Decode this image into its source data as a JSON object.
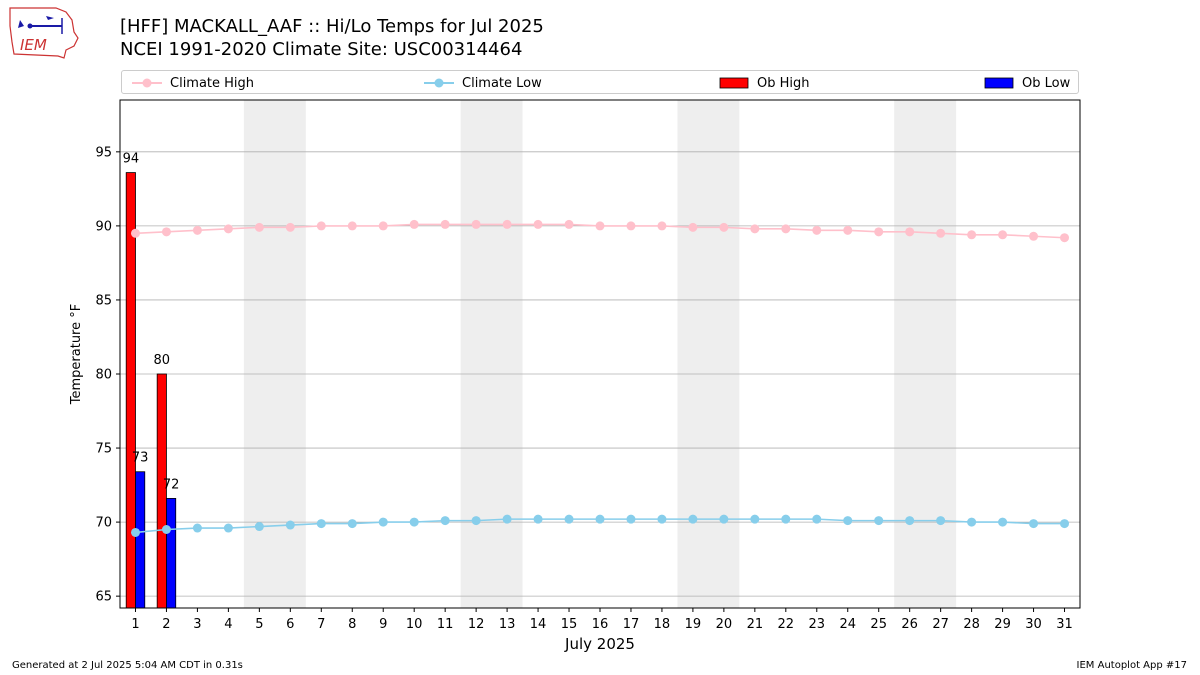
{
  "header": {
    "title_line1": "[HFF] MACKALL_AAF :: Hi/Lo Temps for Jul 2025",
    "title_line2": "NCEI 1991-2020 Climate Site: USC00314464",
    "logo_text": "IEM"
  },
  "legend": {
    "climate_high": "Climate High",
    "climate_low": "Climate Low",
    "ob_high": "Ob High",
    "ob_low": "Ob Low"
  },
  "footer": {
    "generated": "Generated at 2 Jul 2025 5:04 AM CDT in 0.31s",
    "app": "IEM Autoplot App #17"
  },
  "colors": {
    "climate_high": "#FFC0CB",
    "climate_low": "#87CEEB",
    "ob_high": "#FF0000",
    "ob_low": "#0000FF",
    "weekend_shade": "#EEEEEE",
    "grid": "#B0B0B0"
  },
  "chart_data": {
    "type": "bar",
    "xlabel": "July 2025",
    "ylabel": "Temperature °F",
    "xlim": [
      0.5,
      31.5
    ],
    "ylim": [
      64.2,
      98.5
    ],
    "yticks": [
      65,
      70,
      75,
      80,
      85,
      90,
      95
    ],
    "grid": "horizontal",
    "legend_position": "top",
    "days": [
      1,
      2,
      3,
      4,
      5,
      6,
      7,
      8,
      9,
      10,
      11,
      12,
      13,
      14,
      15,
      16,
      17,
      18,
      19,
      20,
      21,
      22,
      23,
      24,
      25,
      26,
      27,
      28,
      29,
      30,
      31
    ],
    "weekend_spans": [
      [
        5,
        6
      ],
      [
        12,
        13
      ],
      [
        19,
        20
      ],
      [
        26,
        27
      ]
    ],
    "series": [
      {
        "name": "Climate High",
        "type": "line",
        "values": [
          89.5,
          89.6,
          89.7,
          89.8,
          89.9,
          89.9,
          90.0,
          90.0,
          90.0,
          90.1,
          90.1,
          90.1,
          90.1,
          90.1,
          90.1,
          90.0,
          90.0,
          90.0,
          89.9,
          89.9,
          89.8,
          89.8,
          89.7,
          89.7,
          89.6,
          89.6,
          89.5,
          89.4,
          89.4,
          89.3,
          89.2
        ]
      },
      {
        "name": "Climate Low",
        "type": "line",
        "values": [
          69.3,
          69.5,
          69.6,
          69.6,
          69.7,
          69.8,
          69.9,
          69.9,
          70.0,
          70.0,
          70.1,
          70.1,
          70.2,
          70.2,
          70.2,
          70.2,
          70.2,
          70.2,
          70.2,
          70.2,
          70.2,
          70.2,
          70.2,
          70.1,
          70.1,
          70.1,
          70.1,
          70.0,
          70.0,
          69.9,
          69.9
        ]
      },
      {
        "name": "Ob High",
        "type": "bar",
        "values": [
          93.6,
          80.0
        ]
      },
      {
        "name": "Ob Low",
        "type": "bar",
        "values": [
          73.4,
          71.6
        ]
      }
    ],
    "bar_labels": {
      "ob_high": [
        "94",
        "80"
      ],
      "ob_low": [
        "73",
        "72"
      ]
    }
  }
}
